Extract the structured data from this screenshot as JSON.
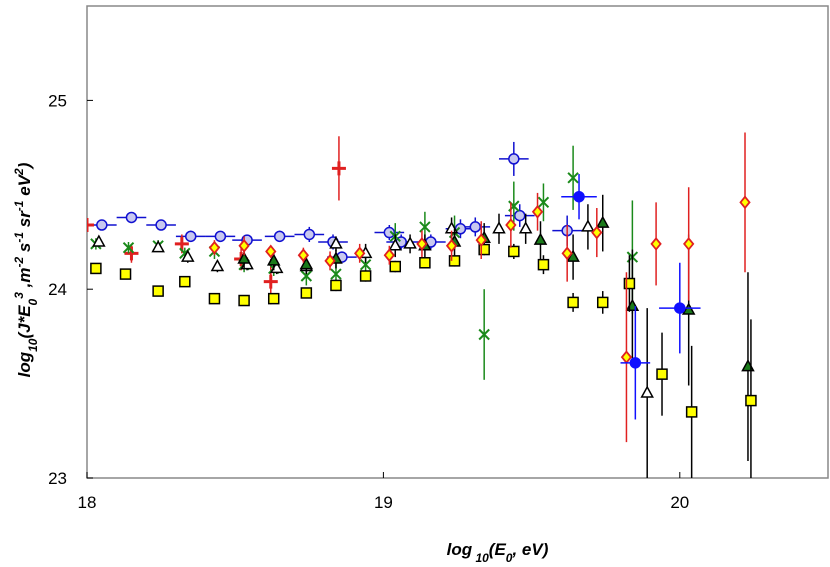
{
  "chart_data": {
    "type": "scatter",
    "x_label": [
      {
        "text": "log",
        "pos": "base"
      },
      {
        "text": " 10",
        "pos": "sub"
      },
      {
        "text": "(E",
        "pos": "base"
      },
      {
        "text": "0",
        "pos": "sub"
      },
      {
        "text": ", eV)",
        "pos": "base"
      }
    ],
    "y_label": [
      {
        "text": "log",
        "pos": "base"
      },
      {
        "text": "10",
        "pos": "sub"
      },
      {
        "text": "(J*E",
        "pos": "base"
      },
      {
        "text": "0",
        "pos": "sub"
      },
      {
        "text": "3",
        "pos": "sup"
      },
      {
        "text": " ,m",
        "pos": "base"
      },
      {
        "text": "-2",
        "pos": "sup"
      },
      {
        "text": " s",
        "pos": "base"
      },
      {
        "text": "-1",
        "pos": "sup"
      },
      {
        "text": " sr",
        "pos": "base"
      },
      {
        "text": "-1",
        "pos": "sup"
      },
      {
        "text": " eV",
        "pos": "base"
      },
      {
        "text": "2",
        "pos": "sup"
      },
      {
        "text": ")",
        "pos": "base"
      }
    ],
    "xlim": [
      18,
      20.5
    ],
    "ylim": [
      23,
      25.5
    ],
    "xticks": [
      18,
      19,
      20
    ],
    "yticks": [
      23,
      24,
      25
    ],
    "series": [
      {
        "marker": "circle-open",
        "color": "#1010d0",
        "fill": "#c8c8f0",
        "x": [
          18.05,
          18.15,
          18.25,
          18.35,
          18.45,
          18.54,
          18.65,
          18.75,
          18.83,
          18.86,
          19.02,
          19.06,
          19.16,
          19.26,
          19.31,
          19.44,
          19.46,
          19.62
        ],
        "values": [
          24.34,
          24.38,
          24.34,
          24.28,
          24.28,
          24.26,
          24.28,
          24.29,
          24.25,
          24.17,
          24.3,
          24.25,
          24.25,
          24.32,
          24.33,
          24.69,
          24.39,
          24.31
        ],
        "yerr": [
          0.02,
          0.02,
          0.02,
          0.03,
          0.02,
          0.02,
          0.03,
          0.04,
          0.04,
          0.03,
          0.04,
          0.04,
          0.04,
          0.05,
          0.05,
          0.09,
          0.06,
          0.08
        ],
        "xerr": [
          0.05,
          0.05,
          0.05,
          0.05,
          0.05,
          0.05,
          0.05,
          0.05,
          0.05,
          0.05,
          0.05,
          0.05,
          0.05,
          0.05,
          0.05,
          0.05,
          0.05,
          0.05
        ]
      },
      {
        "marker": "plus",
        "color": "#e02020",
        "fill": "#e02020",
        "x": [
          18.0,
          18.15,
          18.32,
          18.52,
          18.62,
          18.85
        ],
        "values": [
          24.34,
          24.19,
          24.24,
          24.16,
          24.04,
          24.64
        ],
        "yerr": [
          0.02,
          0.05,
          0.05,
          0.06,
          0.12,
          0.17
        ]
      },
      {
        "marker": "x",
        "color": "#1a8a1a",
        "fill": "#1a8a1a",
        "x": [
          18.03,
          18.14,
          18.24,
          18.33,
          18.43,
          18.53,
          18.63,
          18.74,
          18.84,
          18.94,
          19.04,
          19.14,
          19.24,
          19.34,
          19.44,
          19.54,
          19.64,
          19.84
        ],
        "values": [
          24.24,
          24.22,
          24.23,
          24.19,
          24.2,
          24.13,
          24.11,
          24.07,
          24.08,
          24.13,
          24.28,
          24.33,
          24.3,
          23.76,
          24.44,
          24.46,
          24.59,
          24.17
        ],
        "yerr": [
          0.03,
          0.03,
          0.03,
          0.03,
          0.04,
          0.04,
          0.04,
          0.05,
          0.06,
          0.06,
          0.07,
          0.08,
          0.09,
          0.24,
          0.13,
          0.1,
          0.17,
          0.3
        ]
      },
      {
        "marker": "triangle-open",
        "color": "#000000",
        "fill": "#ffffff",
        "x": [
          18.04,
          18.24,
          18.34,
          18.44,
          18.54,
          18.64,
          18.74,
          18.84,
          18.94,
          19.04,
          19.09,
          19.23,
          19.39,
          19.48,
          19.69,
          19.89
        ],
        "values": [
          24.25,
          24.22,
          24.17,
          24.12,
          24.13,
          24.11,
          24.12,
          24.24,
          24.19,
          24.23,
          24.24,
          24.32,
          24.32,
          24.32,
          24.33,
          23.45
        ],
        "yerr": [
          0.02,
          0.02,
          0.03,
          0.03,
          0.03,
          0.03,
          0.04,
          0.04,
          0.05,
          0.06,
          0.05,
          0.06,
          0.08,
          0.08,
          0.12,
          0.45
        ]
      },
      {
        "marker": "triangle",
        "color": "#000000",
        "fill": "#1a7a1a",
        "x": [
          18.53,
          18.63,
          18.74,
          18.84,
          19.14,
          19.24,
          19.34,
          19.53,
          19.64,
          19.74,
          19.84,
          20.03,
          20.23
        ],
        "values": [
          24.16,
          24.15,
          24.13,
          24.16,
          24.23,
          24.25,
          24.27,
          24.26,
          24.17,
          24.35,
          23.91,
          23.89,
          23.59
        ],
        "yerr": [
          0.05,
          0.05,
          0.04,
          0.05,
          0.06,
          0.07,
          0.08,
          0.1,
          0.12,
          0.15,
          0.3,
          0.4,
          0.5
        ]
      },
      {
        "marker": "square",
        "color": "#000000",
        "fill": "#ffff00",
        "x": [
          18.03,
          18.13,
          18.24,
          18.33,
          18.43,
          18.53,
          18.63,
          18.74,
          18.84,
          18.94,
          19.04,
          19.14,
          19.24,
          19.34,
          19.44,
          19.54,
          19.64,
          19.74,
          19.83,
          19.94,
          20.04,
          20.24
        ],
        "values": [
          24.11,
          24.08,
          23.99,
          24.04,
          23.95,
          23.94,
          23.95,
          23.98,
          24.02,
          24.07,
          24.12,
          24.14,
          24.15,
          24.21,
          24.2,
          24.13,
          23.93,
          23.93,
          24.03,
          23.55,
          23.35,
          23.41
        ],
        "yerr": [
          0.02,
          0.02,
          0.02,
          0.02,
          0.02,
          0.02,
          0.02,
          0.02,
          0.03,
          0.03,
          0.03,
          0.03,
          0.03,
          0.03,
          0.04,
          0.05,
          0.05,
          0.06,
          0.15,
          0.22,
          0.35,
          0.43
        ]
      },
      {
        "marker": "diamond",
        "color": "#e02020",
        "fill": "#ffff00",
        "x": [
          18.43,
          18.53,
          18.62,
          18.73,
          18.82,
          18.92,
          19.02,
          19.13,
          19.23,
          19.33,
          19.43,
          19.52,
          19.62,
          19.72,
          19.82,
          19.92,
          20.03,
          20.22
        ],
        "values": [
          24.22,
          24.23,
          24.2,
          24.18,
          24.15,
          24.19,
          24.18,
          24.24,
          24.23,
          24.26,
          24.34,
          24.41,
          24.19,
          24.3,
          23.64,
          24.24,
          24.24,
          24.46
        ],
        "yerr": [
          0.04,
          0.05,
          0.03,
          0.04,
          0.05,
          0.05,
          0.05,
          0.07,
          0.08,
          0.1,
          0.12,
          0.1,
          0.15,
          0.13,
          0.45,
          0.22,
          0.3,
          0.37
        ]
      },
      {
        "marker": "circle",
        "color": "#1010ff",
        "fill": "#1010ff",
        "x": [
          19.66,
          19.85,
          20.0
        ],
        "values": [
          24.49,
          23.61,
          23.9
        ],
        "yerr": [
          0.12,
          0.3,
          0.24
        ],
        "xerr": [
          0.06,
          0.05,
          0.07
        ]
      }
    ]
  }
}
